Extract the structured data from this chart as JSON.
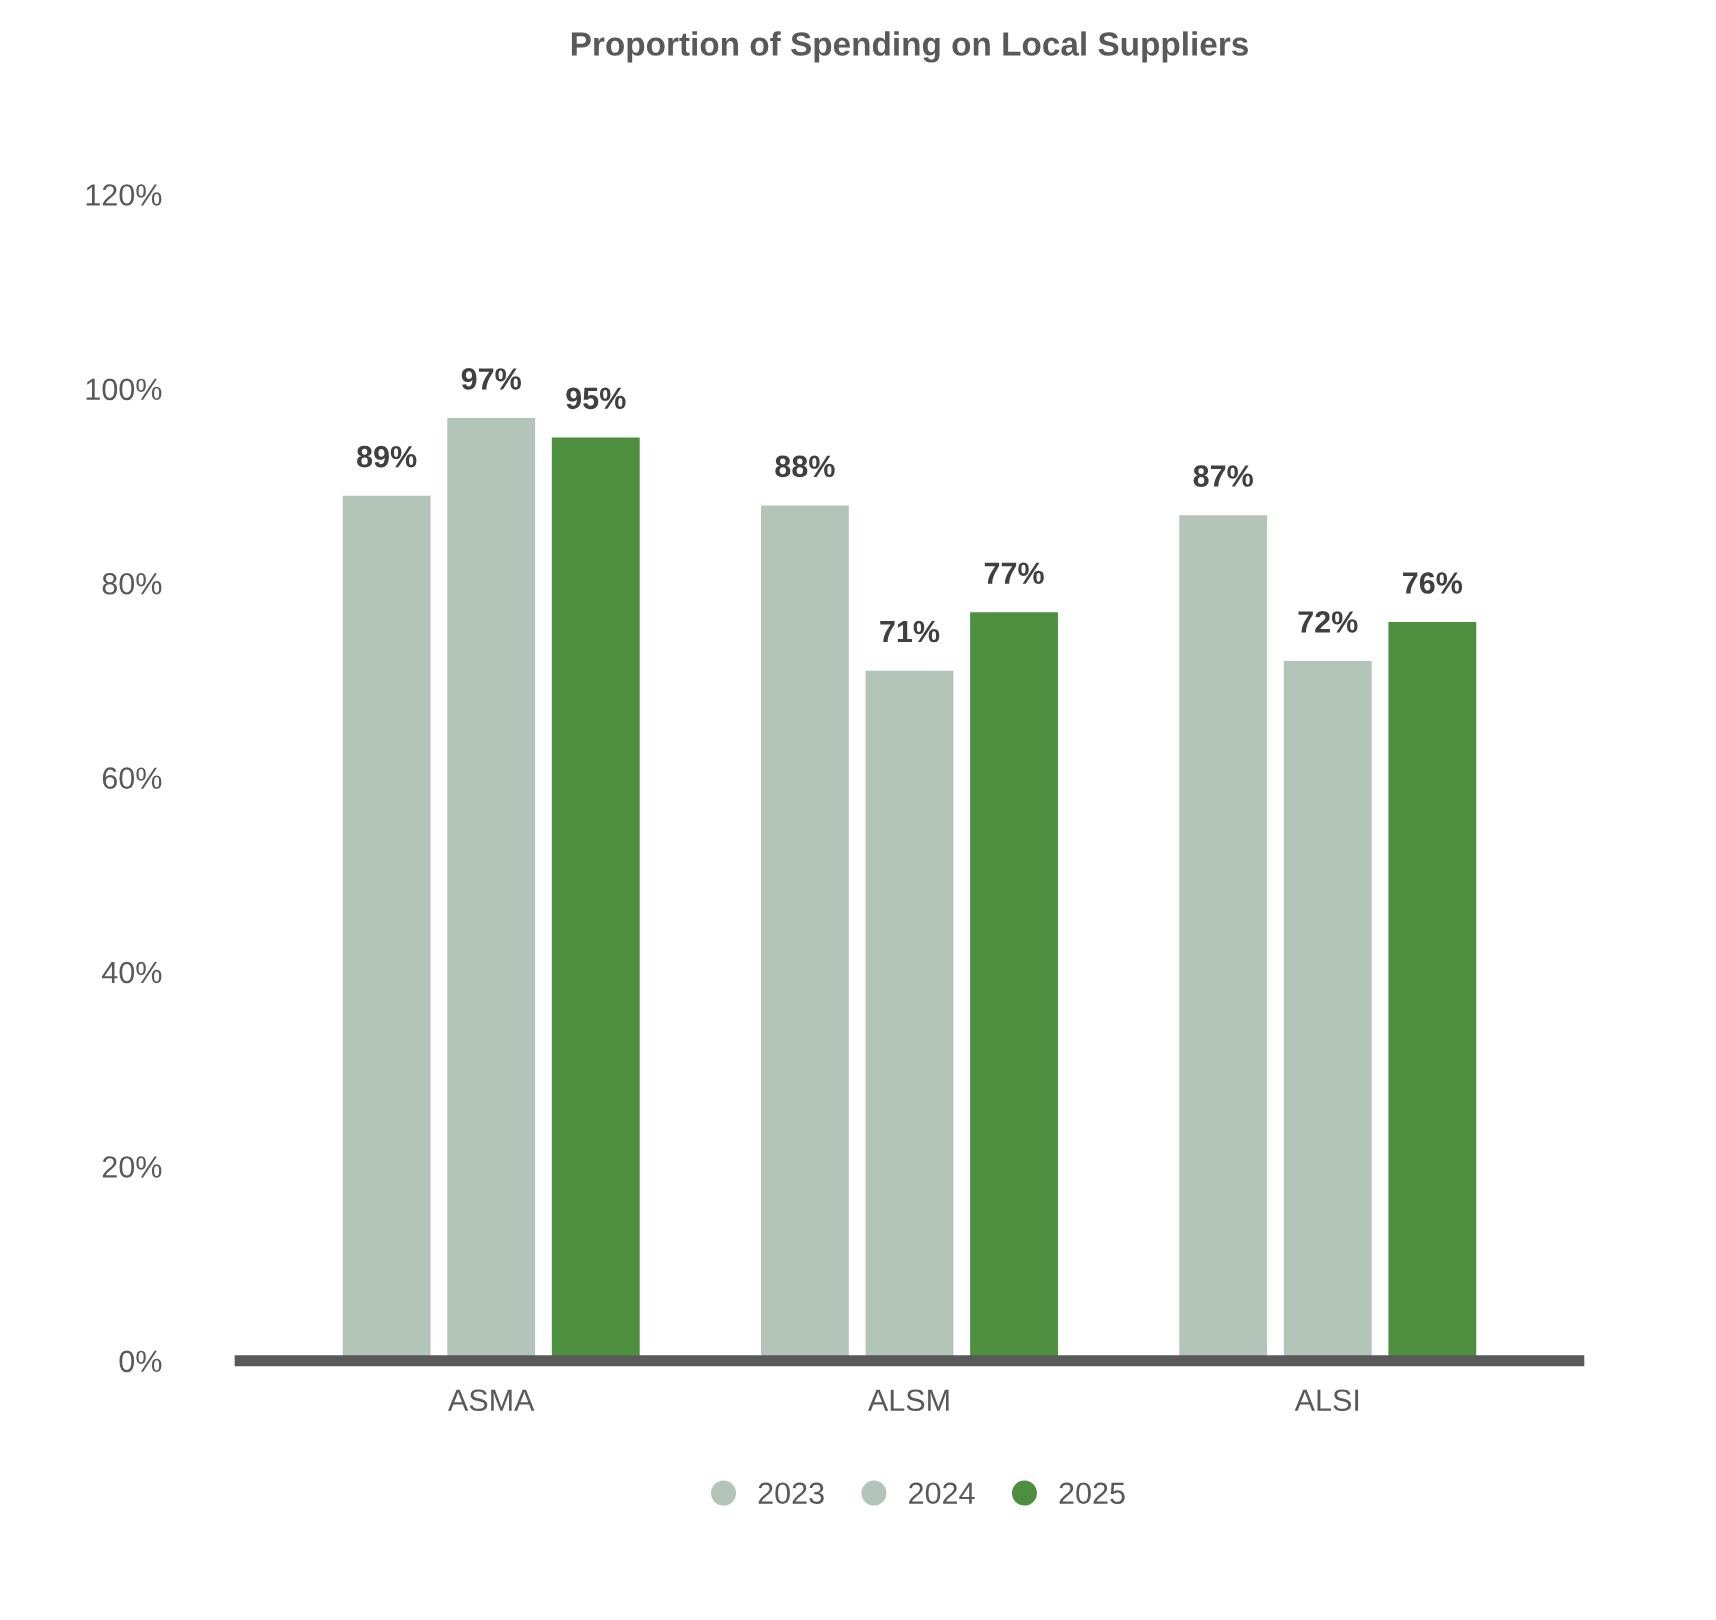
{
  "chart_data": {
    "type": "bar",
    "title": "Proportion of Spending on Local Suppliers",
    "categories": [
      "ASMA",
      "ALSM",
      "ALSI"
    ],
    "series": [
      {
        "name": "2023",
        "color": "#b3c4b9",
        "values": [
          89,
          88,
          87
        ],
        "value_labels": [
          "89%",
          "88%",
          "87%"
        ]
      },
      {
        "name": "2024",
        "color": "#b3c4b9",
        "values": [
          97,
          71,
          72
        ],
        "value_labels": [
          "97%",
          "71%",
          "72%"
        ]
      },
      {
        "name": "2025",
        "color": "#4e8f3f",
        "values": [
          95,
          77,
          76
        ],
        "value_labels": [
          "95%",
          "77%",
          "76%"
        ]
      }
    ],
    "ylim": [
      0,
      120
    ],
    "yticks": [
      {
        "value": 0,
        "label": "0%"
      },
      {
        "value": 20,
        "label": "20%"
      },
      {
        "value": 40,
        "label": "40%"
      },
      {
        "value": 60,
        "label": "60%"
      },
      {
        "value": 80,
        "label": "80%"
      },
      {
        "value": 100,
        "label": "100%"
      },
      {
        "value": 120,
        "label": "120%"
      }
    ],
    "grid": false,
    "legend": "bottom",
    "marker": "circle"
  }
}
